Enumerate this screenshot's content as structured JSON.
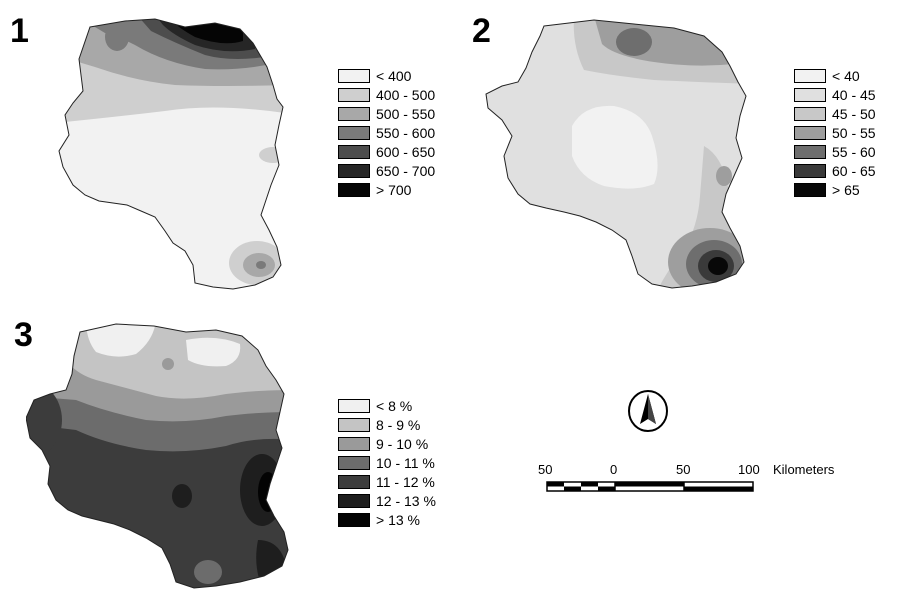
{
  "panels": [
    {
      "number": "1",
      "legend": [
        {
          "label": "< 400",
          "color": "#f2f2f2"
        },
        {
          "label": "400 - 500",
          "color": "#cfcfcf"
        },
        {
          "label": "500 - 550",
          "color": "#a8a8a8"
        },
        {
          "label": "550 - 600",
          "color": "#7a7a7a"
        },
        {
          "label": "600 - 650",
          "color": "#4d4d4d"
        },
        {
          "label": "650 - 700",
          "color": "#262626"
        },
        {
          "label": "> 700",
          "color": "#050505"
        }
      ]
    },
    {
      "number": "2",
      "legend": [
        {
          "label": "< 40",
          "color": "#f2f2f2"
        },
        {
          "label": "40 - 45",
          "color": "#e0e0e0"
        },
        {
          "label": "45 - 50",
          "color": "#c8c8c8"
        },
        {
          "label": "50 - 55",
          "color": "#9e9e9e"
        },
        {
          "label": "55 - 60",
          "color": "#6e6e6e"
        },
        {
          "label": "60 - 65",
          "color": "#3a3a3a"
        },
        {
          "label": "> 65",
          "color": "#080808"
        }
      ]
    },
    {
      "number": "3",
      "legend": [
        {
          "label": "< 8 %",
          "color": "#f0f0f0"
        },
        {
          "label": "8 - 9 %",
          "color": "#c4c4c4"
        },
        {
          "label": "9 - 10 %",
          "color": "#9a9a9a"
        },
        {
          "label": "10 - 11 %",
          "color": "#6c6c6c"
        },
        {
          "label": "11 - 12 %",
          "color": "#3c3c3c"
        },
        {
          "label": "12 - 13 %",
          "color": "#1e1e1e"
        },
        {
          "label": "> 13 %",
          "color": "#030303"
        }
      ]
    }
  ],
  "scale": {
    "ticks": [
      "50",
      "0",
      "50",
      "100"
    ],
    "unit": "Kilometers"
  },
  "north_symbol": "north-arrow-icon"
}
